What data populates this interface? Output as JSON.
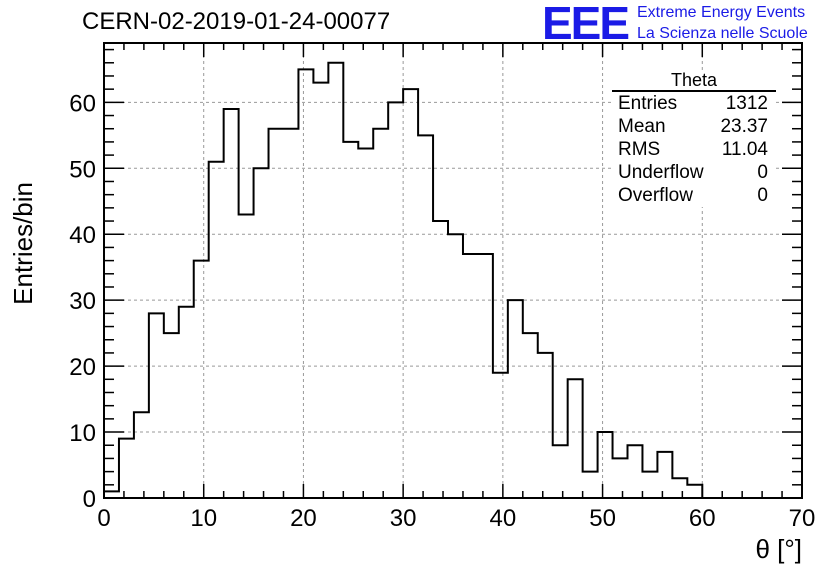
{
  "header": {
    "title": "CERN-02-2019-01-24-00077",
    "logo_text": "EEE",
    "logo_line1": "Extreme Energy Events",
    "logo_line2": "La Scienza nelle Scuole",
    "logo_color": "#1b1be6"
  },
  "stats": {
    "title": "Theta",
    "rows": [
      {
        "label": "Entries",
        "value": "1312"
      },
      {
        "label": "Mean",
        "value": "23.37"
      },
      {
        "label": "RMS",
        "value": "11.04"
      },
      {
        "label": "Underflow",
        "value": "0"
      },
      {
        "label": "Overflow",
        "value": "0"
      }
    ]
  },
  "chart_data": {
    "type": "bar",
    "style": "step-histogram",
    "title": "CERN-02-2019-01-24-00077",
    "xlabel": "θ [°]",
    "ylabel": "Entries/bin",
    "xlim": [
      0,
      70
    ],
    "ylim": [
      0,
      69
    ],
    "bin_width": 1.5,
    "bin_start": 0,
    "bin_edges_note": "",
    "values": [
      1,
      9,
      13,
      28,
      25,
      29,
      36,
      51,
      59,
      43,
      50,
      56,
      56,
      65,
      63,
      66,
      54,
      53,
      56,
      60,
      62,
      55,
      42,
      40,
      37,
      37,
      19,
      30,
      25,
      22,
      8,
      18,
      4,
      10,
      6,
      8,
      4,
      7,
      3,
      2,
      0
    ],
    "xticks": [
      0,
      10,
      20,
      30,
      40,
      50,
      60,
      70
    ],
    "yticks": [
      0,
      10,
      20,
      30,
      40,
      50,
      60
    ],
    "grid": true,
    "line_color": "#000000",
    "grid_color": "#999999"
  }
}
